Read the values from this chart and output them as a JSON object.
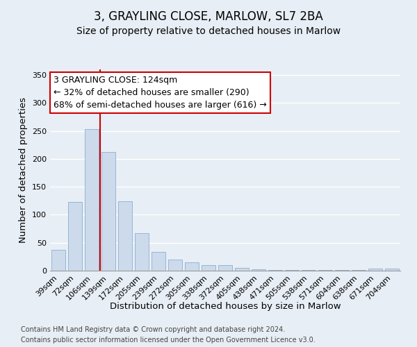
{
  "title": "3, GRAYLING CLOSE, MARLOW, SL7 2BA",
  "subtitle": "Size of property relative to detached houses in Marlow",
  "xlabel": "Distribution of detached houses by size in Marlow",
  "ylabel": "Number of detached properties",
  "categories": [
    "39sqm",
    "72sqm",
    "106sqm",
    "139sqm",
    "172sqm",
    "205sqm",
    "239sqm",
    "272sqm",
    "305sqm",
    "338sqm",
    "372sqm",
    "405sqm",
    "438sqm",
    "471sqm",
    "505sqm",
    "538sqm",
    "571sqm",
    "604sqm",
    "638sqm",
    "671sqm",
    "704sqm"
  ],
  "values": [
    37,
    123,
    253,
    212,
    124,
    67,
    34,
    20,
    15,
    10,
    10,
    5,
    2,
    1,
    1,
    1,
    1,
    1,
    1,
    4,
    4
  ],
  "bar_color": "#ccdaec",
  "bar_edge_color": "#8aafd0",
  "vline_x": 2.5,
  "vline_color": "#cc0000",
  "annotation_title": "3 GRAYLING CLOSE: 124sqm",
  "annotation_line1": "← 32% of detached houses are smaller (290)",
  "annotation_line2": "68% of semi-detached houses are larger (616) →",
  "annotation_box_color": "#ffffff",
  "annotation_box_edge": "#cc0000",
  "ylim": [
    0,
    360
  ],
  "yticks": [
    0,
    50,
    100,
    150,
    200,
    250,
    300,
    350
  ],
  "footer_line1": "Contains HM Land Registry data © Crown copyright and database right 2024.",
  "footer_line2": "Contains public sector information licensed under the Open Government Licence v3.0.",
  "background_color": "#e8eef5",
  "plot_background": "#e8eef5",
  "grid_color": "#ffffff",
  "title_fontsize": 12,
  "subtitle_fontsize": 10,
  "axis_label_fontsize": 9.5,
  "tick_fontsize": 8,
  "footer_fontsize": 7,
  "annotation_fontsize": 9
}
